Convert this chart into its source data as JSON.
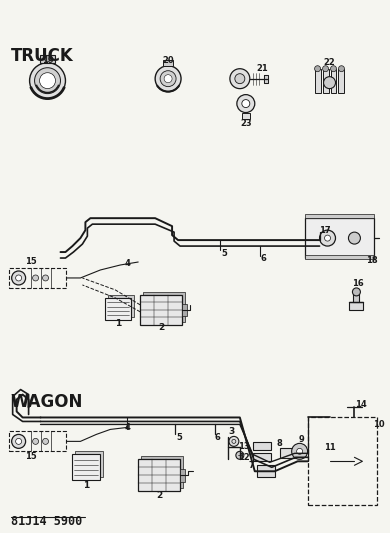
{
  "title": "81J14 5900",
  "wagon_label": "WAGON",
  "truck_label": "TRUCK",
  "bg_color": "#f5f5f0",
  "line_color": "#1a1a1a",
  "figsize": [
    3.9,
    5.33
  ],
  "dpi": 100
}
